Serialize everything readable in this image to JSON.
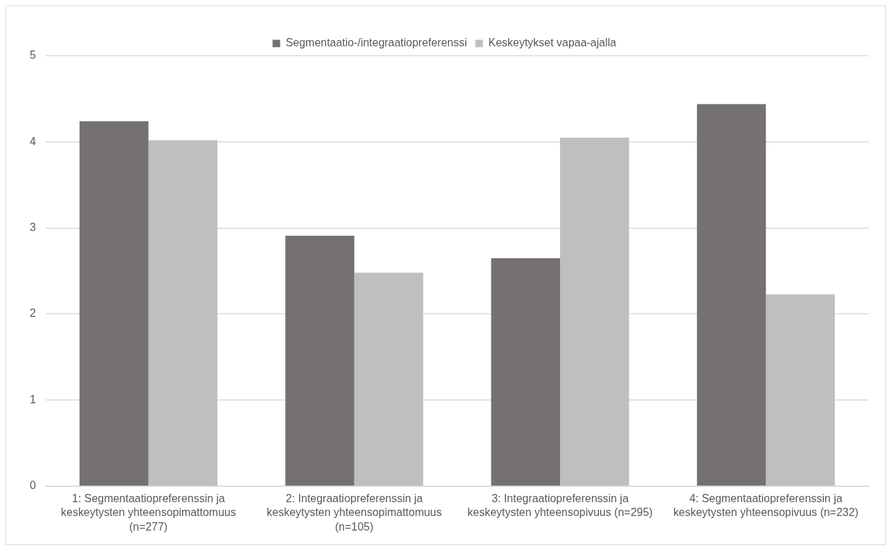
{
  "chart_data": {
    "type": "bar",
    "categories": [
      "1: Segmentaatiopreferenssin ja keskeytysten yhteensopimattomuus (n=277)",
      "2: Integraatiopreferenssin ja keskeytysten yhteensopimattomuus (n=105)",
      "3: Integraatiopreferenssin ja keskeytysten yhteensopivuus (n=295)",
      "4: Segmentaatiopreferenssin ja keskeytysten yhteensopivuus (n=232)"
    ],
    "series": [
      {
        "name": "Segmentaatio-/integraatiopreferenssi",
        "color": "#767171",
        "values": [
          4.24,
          2.91,
          2.65,
          4.44
        ]
      },
      {
        "name": "Keskeytykset vapaa-ajalla",
        "color": "#bfbfbf",
        "values": [
          4.02,
          2.48,
          4.05,
          2.23
        ]
      }
    ],
    "ylim": [
      0,
      5
    ],
    "yticks": [
      0,
      1,
      2,
      3,
      4,
      5
    ],
    "grid": "y",
    "legend": "top"
  }
}
